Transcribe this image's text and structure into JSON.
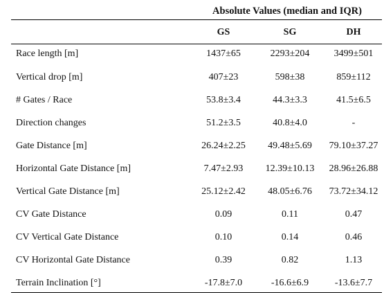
{
  "table": {
    "group_header": "Absolute Values (median and IQR)",
    "columns": [
      "GS",
      "SG",
      "DH"
    ],
    "rows": [
      {
        "label": "Race length [m]",
        "values": [
          "1437±65",
          "2293±204",
          "3499±501"
        ]
      },
      {
        "label": "Vertical drop [m]",
        "values": [
          "407±23",
          "598±38",
          "859±112"
        ]
      },
      {
        "label": "# Gates / Race",
        "values": [
          "53.8±3.4",
          "44.3±3.3",
          "41.5±6.5"
        ]
      },
      {
        "label": "Direction changes",
        "values": [
          "51.2±3.5",
          "40.8±4.0",
          "-"
        ]
      },
      {
        "label": "Gate Distance [m]",
        "values": [
          "26.24±2.25",
          "49.48±5.69",
          "79.10±37.27"
        ]
      },
      {
        "label": "Horizontal Gate Distance [m]",
        "values": [
          "7.47±2.93",
          "12.39±10.13",
          "28.96±26.88"
        ]
      },
      {
        "label": "Vertical Gate Distance [m]",
        "values": [
          "25.12±2.42",
          "48.05±6.76",
          "73.72±34.12"
        ]
      },
      {
        "label": "CV Gate Distance",
        "values": [
          "0.09",
          "0.11",
          "0.47"
        ]
      },
      {
        "label": "CV Vertical Gate Distance",
        "values": [
          "0.10",
          "0.14",
          "0.46"
        ]
      },
      {
        "label": "CV Horizontal Gate Distance",
        "values": [
          "0.39",
          "0.82",
          "1.13"
        ]
      },
      {
        "label": "Terrain Inclination [°]",
        "values": [
          "-17.8±7.0",
          "-16.6±6.9",
          "-13.6±7.7"
        ]
      }
    ]
  }
}
